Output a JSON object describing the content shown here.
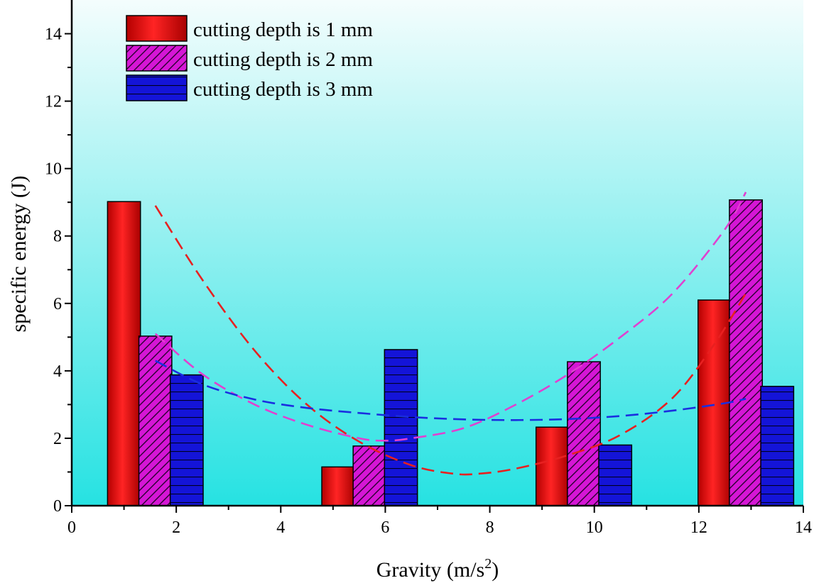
{
  "chart_data": {
    "type": "bar",
    "title": "",
    "xlabel": "Gravity (m/s",
    "xlabel_sup": "2",
    "xlabel_close": ")",
    "ylabel": "specific energy (J)",
    "xlim": [
      0,
      14
    ],
    "ylim": [
      0,
      15
    ],
    "x_ticks": [
      0,
      2,
      4,
      6,
      8,
      10,
      12,
      14
    ],
    "y_ticks": [
      0,
      2,
      4,
      6,
      8,
      10,
      12,
      14
    ],
    "x_tick_labels": [
      "0",
      "2",
      "4",
      "6",
      "8",
      "10",
      "12",
      "14"
    ],
    "y_tick_labels": [
      "0",
      "2",
      "4",
      "6",
      "8",
      "10",
      "12",
      "14"
    ],
    "legend_position": "top-left",
    "series": [
      {
        "name": "cutting depth is 1 mm",
        "color": "#e8151b",
        "pattern": "gradient",
        "x": [
          1.0,
          5.1,
          9.2,
          12.3
        ],
        "values": [
          9.02,
          1.15,
          2.33,
          6.1
        ]
      },
      {
        "name": "cutting depth is 2 mm",
        "color": "#d516d5",
        "pattern": "diagonal",
        "x": [
          1.6,
          5.7,
          9.8,
          12.9
        ],
        "values": [
          5.03,
          1.77,
          4.27,
          9.07
        ]
      },
      {
        "name": "cutting depth is 3 mm",
        "color": "#1414d8",
        "pattern": "horizontal",
        "x": [
          2.2,
          6.3,
          10.4,
          13.5
        ],
        "values": [
          3.88,
          4.63,
          1.8,
          3.54
        ]
      }
    ],
    "bar_width": 0.63,
    "trend_lines": [
      {
        "series": "cutting depth is 1 mm",
        "color": "#e82020",
        "x": [
          1.6,
          2.5,
          3.5,
          4.5,
          5.5,
          6.5,
          7.3,
          7.8,
          8.5,
          9.5,
          10.5,
          11.5,
          12.3,
          12.9
        ],
        "y": [
          8.9,
          6.7,
          4.6,
          3.0,
          1.9,
          1.2,
          0.95,
          0.95,
          1.1,
          1.5,
          2.1,
          3.2,
          4.8,
          6.3
        ]
      },
      {
        "series": "cutting depth is 2 mm",
        "color": "#e040d0",
        "x": [
          1.6,
          2.5,
          3.5,
          4.5,
          5.5,
          6.0,
          6.5,
          7.5,
          8.5,
          9.5,
          10.5,
          11.5,
          12.5,
          12.9
        ],
        "y": [
          5.1,
          3.9,
          3.0,
          2.4,
          2.0,
          1.93,
          2.0,
          2.3,
          3.0,
          3.9,
          5.0,
          6.3,
          8.2,
          9.3
        ]
      },
      {
        "series": "cutting depth is 3 mm",
        "color": "#1a2ee0",
        "x": [
          1.6,
          2.5,
          3.5,
          4.5,
          5.5,
          6.5,
          7.5,
          8.5,
          9.5,
          10.5,
          11.5,
          12.5,
          12.9
        ],
        "y": [
          4.3,
          3.6,
          3.15,
          2.9,
          2.75,
          2.63,
          2.56,
          2.54,
          2.57,
          2.66,
          2.82,
          3.04,
          3.17
        ]
      }
    ]
  }
}
